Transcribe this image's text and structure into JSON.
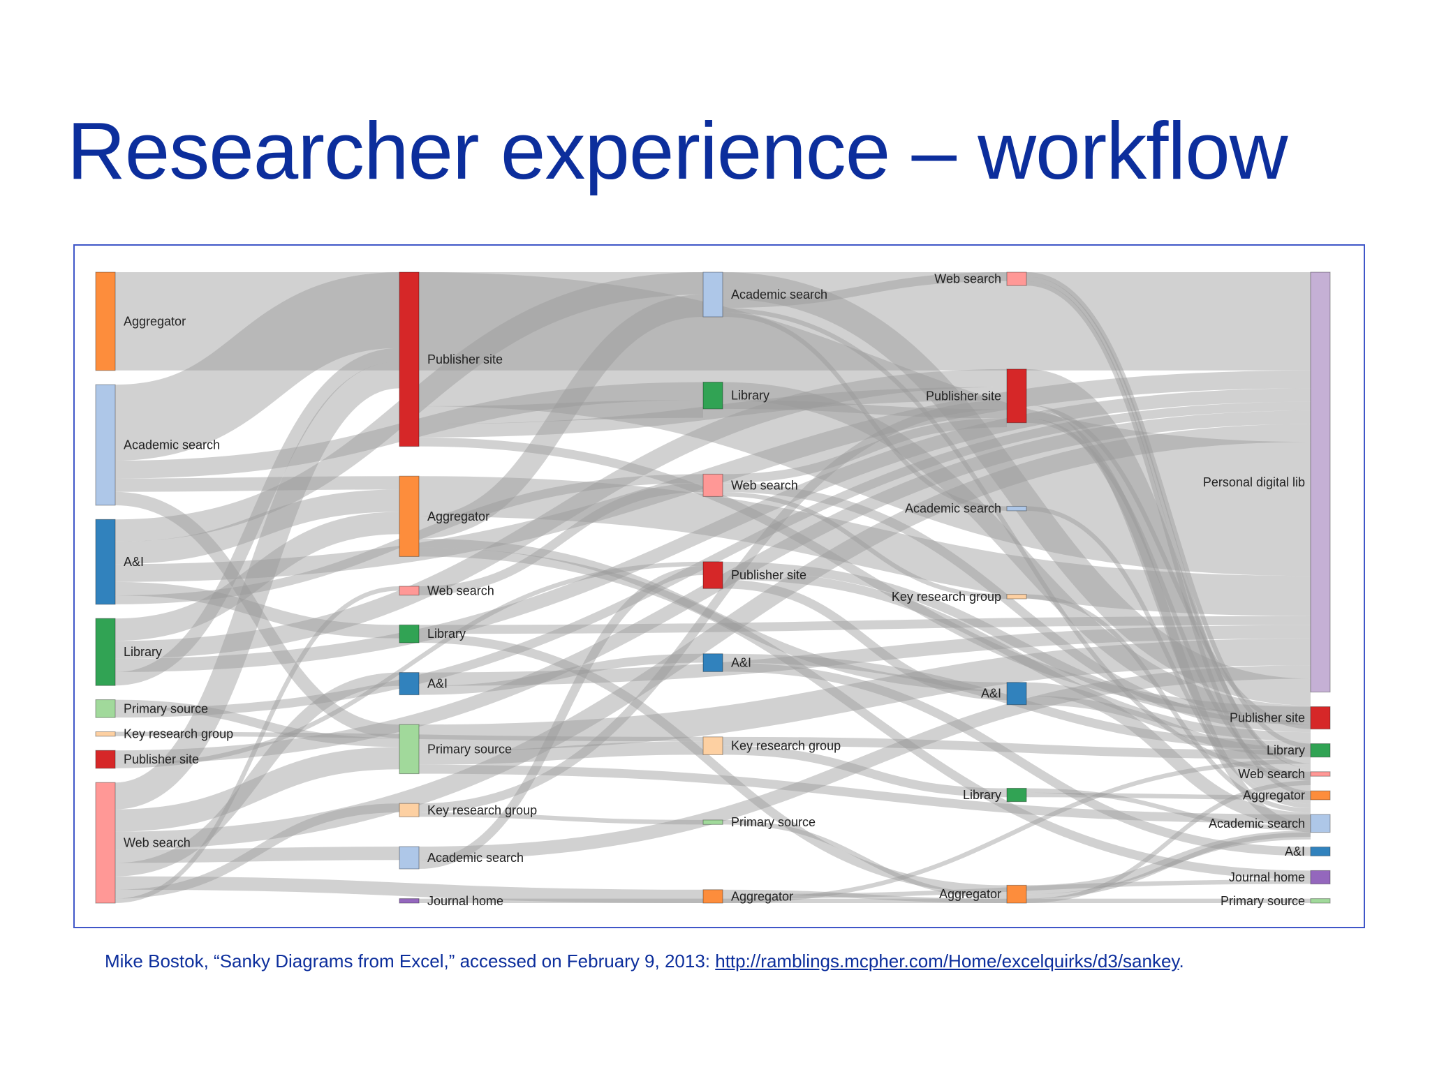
{
  "slide": {
    "title": "Researcher experience – workflow"
  },
  "caption": {
    "text_before_link": "Mike Bostok, “Sanky Diagrams from Excel,” accessed on February 9, 2013: ",
    "link_text": "http://ramblings.mcpher.com/Home/excelquirks/d3/sankey",
    "text_after_link": "."
  },
  "colors": {
    "Aggregator": "#fd8d3c",
    "Academic search": "#aec7e8",
    "A&I": "#3182bd",
    "Library": "#31a354",
    "Primary source": "#a1d99b",
    "Key research group": "#fdd0a2",
    "Publisher site": "#d62728",
    "Web search": "#ff9896",
    "Journal home": "#9467bd",
    "Personal digital lib": "#c5b0d5",
    "link": "#9a9a9a"
  },
  "sankey": {
    "stages": [
      {
        "nodes": [
          {
            "name": "Aggregator",
            "value": 22
          },
          {
            "name": "Academic search",
            "value": 27
          },
          {
            "name": "A&I",
            "value": 19
          },
          {
            "name": "Library",
            "value": 15
          },
          {
            "name": "Primary source",
            "value": 4
          },
          {
            "name": "Key research group",
            "value": 1
          },
          {
            "name": "Publisher site",
            "value": 4
          },
          {
            "name": "Web search",
            "value": 27
          }
        ]
      },
      {
        "nodes": [
          {
            "name": "Publisher site",
            "value": 39
          },
          {
            "name": "Aggregator",
            "value": 18
          },
          {
            "name": "Web search",
            "value": 2
          },
          {
            "name": "Library",
            "value": 4
          },
          {
            "name": "A&I",
            "value": 5
          },
          {
            "name": "Primary source",
            "value": 11
          },
          {
            "name": "Key research group",
            "value": 3
          },
          {
            "name": "Academic search",
            "value": 5
          },
          {
            "name": "Journal home",
            "value": 1
          }
        ]
      },
      {
        "nodes": [
          {
            "name": "Academic search",
            "value": 10
          },
          {
            "name": "Library",
            "value": 6
          },
          {
            "name": "Web search",
            "value": 5
          },
          {
            "name": "Publisher site",
            "value": 6
          },
          {
            "name": "A&I",
            "value": 4
          },
          {
            "name": "Key research group",
            "value": 4
          },
          {
            "name": "Primary source",
            "value": 1
          },
          {
            "name": "Aggregator",
            "value": 3
          }
        ]
      },
      {
        "nodes": [
          {
            "name": "Web search",
            "value": 3
          },
          {
            "name": "Publisher site",
            "value": 12
          },
          {
            "name": "Academic search",
            "value": 1
          },
          {
            "name": "Key research group",
            "value": 1
          },
          {
            "name": "A&I",
            "value": 5
          },
          {
            "name": "Library",
            "value": 3
          },
          {
            "name": "Aggregator",
            "value": 4
          }
        ]
      },
      {
        "nodes": [
          {
            "name": "Personal digital lib",
            "value": 94
          },
          {
            "name": "Publisher site",
            "value": 5
          },
          {
            "name": "Library",
            "value": 3
          },
          {
            "name": "Web search",
            "value": 1
          },
          {
            "name": "Aggregator",
            "value": 2
          },
          {
            "name": "Academic search",
            "value": 4
          },
          {
            "name": "A&I",
            "value": 2
          },
          {
            "name": "Journal home",
            "value": 3
          },
          {
            "name": "Primary source",
            "value": 1
          }
        ]
      }
    ],
    "links": [
      {
        "source": [
          0,
          0
        ],
        "target": [
          4,
          0
        ],
        "value": 22
      },
      {
        "source": [
          0,
          1
        ],
        "target": [
          1,
          0
        ],
        "value": 17
      },
      {
        "source": [
          0,
          1
        ],
        "target": [
          2,
          1
        ],
        "value": 4
      },
      {
        "source": [
          0,
          1
        ],
        "target": [
          1,
          1
        ],
        "value": 3
      },
      {
        "source": [
          0,
          1
        ],
        "target": [
          1,
          5
        ],
        "value": 3
      },
      {
        "source": [
          0,
          2
        ],
        "target": [
          2,
          0
        ],
        "value": 5
      },
      {
        "source": [
          0,
          2
        ],
        "target": [
          1,
          1
        ],
        "value": 5
      },
      {
        "source": [
          0,
          2
        ],
        "target": [
          4,
          0
        ],
        "value": 4
      },
      {
        "source": [
          0,
          2
        ],
        "target": [
          1,
          3
        ],
        "value": 3
      },
      {
        "source": [
          0,
          2
        ],
        "target": [
          2,
          2
        ],
        "value": 2
      },
      {
        "source": [
          0,
          3
        ],
        "target": [
          1,
          1
        ],
        "value": 5
      },
      {
        "source": [
          0,
          3
        ],
        "target": [
          3,
          1
        ],
        "value": 4
      },
      {
        "source": [
          0,
          3
        ],
        "target": [
          4,
          0
        ],
        "value": 3
      },
      {
        "source": [
          0,
          3
        ],
        "target": [
          1,
          0
        ],
        "value": 3
      },
      {
        "source": [
          0,
          4
        ],
        "target": [
          1,
          5
        ],
        "value": 2
      },
      {
        "source": [
          0,
          4
        ],
        "target": [
          4,
          0
        ],
        "value": 2
      },
      {
        "source": [
          0,
          5
        ],
        "target": [
          2,
          5
        ],
        "value": 1
      },
      {
        "source": [
          0,
          6
        ],
        "target": [
          4,
          0
        ],
        "value": 3
      },
      {
        "source": [
          0,
          6
        ],
        "target": [
          2,
          3
        ],
        "value": 1
      },
      {
        "source": [
          0,
          7
        ],
        "target": [
          1,
          0
        ],
        "value": 6
      },
      {
        "source": [
          0,
          7
        ],
        "target": [
          1,
          5
        ],
        "value": 5
      },
      {
        "source": [
          0,
          7
        ],
        "target": [
          4,
          0
        ],
        "value": 4
      },
      {
        "source": [
          0,
          7
        ],
        "target": [
          1,
          7
        ],
        "value": 3
      },
      {
        "source": [
          0,
          7
        ],
        "target": [
          1,
          4
        ],
        "value": 3
      },
      {
        "source": [
          0,
          7
        ],
        "target": [
          2,
          7
        ],
        "value": 3
      },
      {
        "source": [
          0,
          7
        ],
        "target": [
          1,
          6
        ],
        "value": 2
      },
      {
        "source": [
          0,
          7
        ],
        "target": [
          1,
          2
        ],
        "value": 1
      },
      {
        "source": [
          1,
          0
        ],
        "target": [
          4,
          0
        ],
        "value": 30
      },
      {
        "source": [
          1,
          0
        ],
        "target": [
          2,
          1
        ],
        "value": 4
      },
      {
        "source": [
          1,
          0
        ],
        "target": [
          3,
          1
        ],
        "value": 3
      },
      {
        "source": [
          1,
          0
        ],
        "target": [
          4,
          1
        ],
        "value": 2
      },
      {
        "source": [
          1,
          1
        ],
        "target": [
          4,
          0
        ],
        "value": 9
      },
      {
        "source": [
          1,
          1
        ],
        "target": [
          2,
          0
        ],
        "value": 5
      },
      {
        "source": [
          1,
          1
        ],
        "target": [
          3,
          4
        ],
        "value": 2
      },
      {
        "source": [
          1,
          1
        ],
        "target": [
          4,
          7
        ],
        "value": 2
      },
      {
        "source": [
          1,
          2
        ],
        "target": [
          2,
          2
        ],
        "value": 2
      },
      {
        "source": [
          1,
          3
        ],
        "target": [
          4,
          0
        ],
        "value": 2
      },
      {
        "source": [
          1,
          3
        ],
        "target": [
          3,
          6
        ],
        "value": 2
      },
      {
        "source": [
          1,
          4
        ],
        "target": [
          4,
          0
        ],
        "value": 3
      },
      {
        "source": [
          1,
          4
        ],
        "target": [
          2,
          4
        ],
        "value": 2
      },
      {
        "source": [
          1,
          5
        ],
        "target": [
          4,
          0
        ],
        "value": 6
      },
      {
        "source": [
          1,
          5
        ],
        "target": [
          2,
          5
        ],
        "value": 3
      },
      {
        "source": [
          1,
          5
        ],
        "target": [
          4,
          5
        ],
        "value": 2
      },
      {
        "source": [
          1,
          6
        ],
        "target": [
          3,
          1
        ],
        "value": 2
      },
      {
        "source": [
          1,
          6
        ],
        "target": [
          2,
          6
        ],
        "value": 1
      },
      {
        "source": [
          1,
          7
        ],
        "target": [
          4,
          0
        ],
        "value": 3
      },
      {
        "source": [
          1,
          7
        ],
        "target": [
          2,
          3
        ],
        "value": 2
      },
      {
        "source": [
          1,
          8
        ],
        "target": [
          4,
          8
        ],
        "value": 1
      },
      {
        "source": [
          2,
          0
        ],
        "target": [
          4,
          0
        ],
        "value": 6
      },
      {
        "source": [
          2,
          0
        ],
        "target": [
          3,
          0
        ],
        "value": 2
      },
      {
        "source": [
          2,
          0
        ],
        "target": [
          4,
          3
        ],
        "value": 1
      },
      {
        "source": [
          2,
          0
        ],
        "target": [
          3,
          2
        ],
        "value": 1
      },
      {
        "source": [
          2,
          1
        ],
        "target": [
          4,
          0
        ],
        "value": 4
      },
      {
        "source": [
          2,
          1
        ],
        "target": [
          3,
          1
        ],
        "value": 2
      },
      {
        "source": [
          2,
          2
        ],
        "target": [
          3,
          1
        ],
        "value": 2
      },
      {
        "source": [
          2,
          2
        ],
        "target": [
          4,
          0
        ],
        "value": 2
      },
      {
        "source": [
          2,
          2
        ],
        "target": [
          3,
          3
        ],
        "value": 1
      },
      {
        "source": [
          2,
          3
        ],
        "target": [
          4,
          1
        ],
        "value": 2
      },
      {
        "source": [
          2,
          3
        ],
        "target": [
          4,
          0
        ],
        "value": 2
      },
      {
        "source": [
          2,
          3
        ],
        "target": [
          3,
          4
        ],
        "value": 2
      },
      {
        "source": [
          2,
          4
        ],
        "target": [
          4,
          0
        ],
        "value": 2
      },
      {
        "source": [
          2,
          4
        ],
        "target": [
          4,
          6
        ],
        "value": 2
      },
      {
        "source": [
          2,
          5
        ],
        "target": [
          4,
          0
        ],
        "value": 2
      },
      {
        "source": [
          2,
          5
        ],
        "target": [
          3,
          5
        ],
        "value": 2
      },
      {
        "source": [
          2,
          6
        ],
        "target": [
          3,
          6
        ],
        "value": 1
      },
      {
        "source": [
          2,
          7
        ],
        "target": [
          3,
          6
        ],
        "value": 1
      },
      {
        "source": [
          2,
          7
        ],
        "target": [
          4,
          7
        ],
        "value": 1
      },
      {
        "source": [
          2,
          7
        ],
        "target": [
          4,
          0
        ],
        "value": 1
      },
      {
        "source": [
          3,
          0
        ],
        "target": [
          4,
          2
        ],
        "value": 1
      },
      {
        "source": [
          3,
          0
        ],
        "target": [
          4,
          0
        ],
        "value": 1
      },
      {
        "source": [
          3,
          0
        ],
        "target": [
          4,
          4
        ],
        "value": 1
      },
      {
        "source": [
          3,
          1
        ],
        "target": [
          4,
          0
        ],
        "value": 8
      },
      {
        "source": [
          3,
          1
        ],
        "target": [
          4,
          1
        ],
        "value": 1
      },
      {
        "source": [
          3,
          1
        ],
        "target": [
          4,
          5
        ],
        "value": 2
      },
      {
        "source": [
          3,
          1
        ],
        "target": [
          4,
          3
        ],
        "value": 1
      },
      {
        "source": [
          3,
          2
        ],
        "target": [
          4,
          0
        ],
        "value": 1
      },
      {
        "source": [
          3,
          3
        ],
        "target": [
          4,
          0
        ],
        "value": 1
      },
      {
        "source": [
          3,
          4
        ],
        "target": [
          4,
          0
        ],
        "value": 3
      },
      {
        "source": [
          3,
          4
        ],
        "target": [
          4,
          2
        ],
        "value": 2
      },
      {
        "source": [
          3,
          5
        ],
        "target": [
          4,
          0
        ],
        "value": 1
      },
      {
        "source": [
          3,
          5
        ],
        "target": [
          4,
          4
        ],
        "value": 1
      },
      {
        "source": [
          3,
          6
        ],
        "target": [
          4,
          0
        ],
        "value": 2
      },
      {
        "source": [
          3,
          6
        ],
        "target": [
          4,
          5
        ],
        "value": 1
      },
      {
        "source": [
          3,
          6
        ],
        "target": [
          4,
          3
        ],
        "value": 1
      }
    ]
  }
}
